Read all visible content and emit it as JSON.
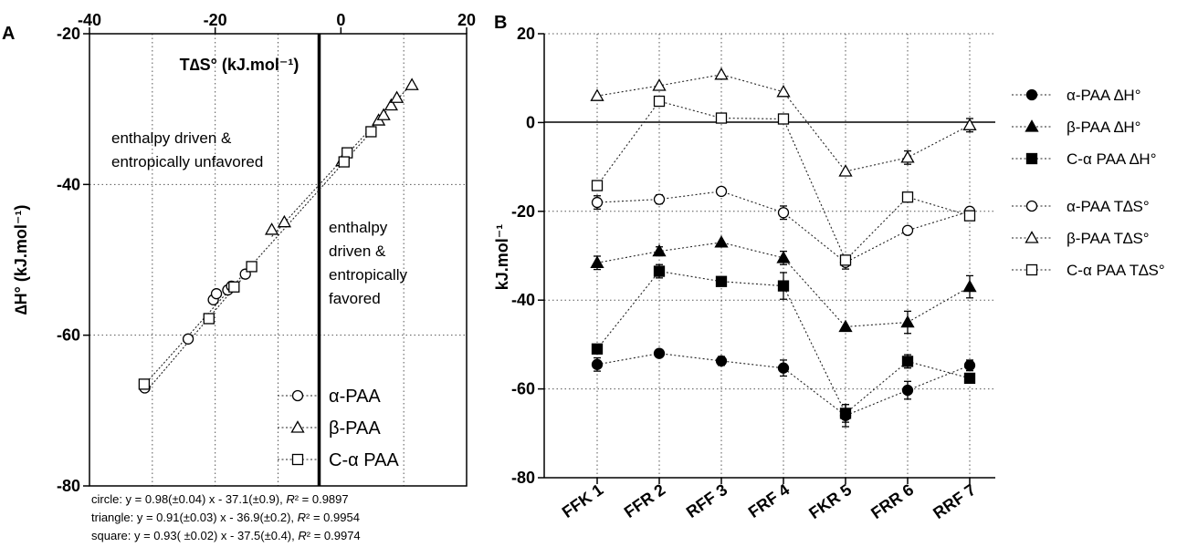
{
  "panels": {
    "a": {
      "letter": "A",
      "title_top": "T∆S° (kJ.mol⁻¹)",
      "ylabel": "∆H° (kJ.mol⁻¹)",
      "region_upper_line1": "enthalpy driven &",
      "region_upper_line2": "entropically unfavored",
      "region_lower_line1": "enthalpy",
      "region_lower_line2": "driven &",
      "region_lower_line3": "entropically",
      "region_lower_line4": "favored",
      "legend": [
        "α-PAA",
        "β-PAA",
        "C-α PAA"
      ],
      "equations": [
        {
          "lead": "circle: y = 0.98(±0.04) x - 37.1(±0.9), ",
          "r": "R",
          "tail": "² = 0.9897"
        },
        {
          "lead": "triangle: y = 0.91(±0.03) x - 36.9(±0.2), ",
          "r": "R",
          "tail": "² = 0.9954"
        },
        {
          "lead": "square: y = 0.93( ±0.02) x - 37.5(±0.4), ",
          "r": "R",
          "tail": "² = 0.9974"
        }
      ]
    },
    "b": {
      "letter": "B",
      "ylabel": "kJ.mol⁻¹",
      "legend": [
        "α-PAA ∆H°",
        "β-PAA ∆H°",
        "C-α PAA ∆H°",
        "α-PAA T∆S°",
        "β-PAA T∆S°",
        "C-α PAA T∆S°"
      ]
    }
  },
  "chart_data": [
    {
      "type": "scatter",
      "panel": "A",
      "xlabel": "T∆S° (kJ.mol⁻¹)",
      "ylabel": "∆H° (kJ.mol⁻¹)",
      "xlim": [
        -40,
        20
      ],
      "ylim": [
        -80,
        -20
      ],
      "xticks": [
        "-40",
        "-20",
        "0",
        "20"
      ],
      "yticks": [
        "-20",
        "-40",
        "-60",
        "-80"
      ],
      "grid": true,
      "legend_position": "bottom-right",
      "series": [
        {
          "name": "α-PAA",
          "marker": "circle",
          "x": [
            -31.2,
            -24.3,
            -20.3,
            -19.8,
            -18.0,
            -17.4,
            -15.2
          ],
          "y": [
            -67.0,
            -60.5,
            -55.3,
            -54.5,
            -54.0,
            -53.5,
            -51.9
          ],
          "fit": {
            "slope": 0.98,
            "intercept": -37.1
          }
        },
        {
          "name": "β-PAA",
          "marker": "triangle",
          "x": [
            -11.0,
            -9.0,
            0.2,
            6.0,
            6.8,
            8.0,
            8.9,
            11.3
          ],
          "y": [
            -46.0,
            -45.0,
            -36.9,
            -31.5,
            -30.8,
            -29.5,
            -28.5,
            -26.8
          ],
          "fit": {
            "slope": 0.91,
            "intercept": -36.9
          }
        },
        {
          "name": "C-α PAA",
          "marker": "square",
          "x": [
            -31.3,
            -21.0,
            -17.0,
            -14.2,
            1.0,
            0.5,
            4.8
          ],
          "y": [
            -66.5,
            -57.8,
            -53.6,
            -50.9,
            -35.8,
            -37.0,
            -33.0
          ],
          "fit": {
            "slope": 0.93,
            "intercept": -37.5
          }
        }
      ]
    },
    {
      "type": "line",
      "panel": "B",
      "ylabel": "kJ.mol⁻¹",
      "categories": [
        "FFK 1",
        "FFR 2",
        "RFF 3",
        "FRF 4",
        "FKR 5",
        "FRR 6",
        "RRF 7"
      ],
      "ylim": [
        -80,
        20
      ],
      "yticks": [
        "20",
        "0",
        "-20",
        "-40",
        "-60",
        "-80"
      ],
      "grid": true,
      "legend_position": "right",
      "series": [
        {
          "name": "α-PAA ∆H°",
          "marker": "circle",
          "filled": true,
          "values": [
            -54.5,
            -52.0,
            -53.7,
            -55.3,
            -66.0,
            -60.3,
            -54.7
          ],
          "error": [
            1.5,
            0.8,
            1.0,
            1.8,
            2.5,
            2.0,
            1.2
          ]
        },
        {
          "name": "β-PAA ∆H°",
          "marker": "triangle",
          "filled": true,
          "values": [
            -31.6,
            -29.0,
            -27.0,
            -30.5,
            -46.0,
            -45.0,
            -37.0
          ],
          "error": [
            1.5,
            1.0,
            0.5,
            1.5,
            0.5,
            2.5,
            2.5
          ]
        },
        {
          "name": "C-α PAA ∆H°",
          "marker": "square",
          "filled": true,
          "values": [
            -51.0,
            -33.5,
            -35.8,
            -36.8,
            -65.5,
            -53.8,
            -57.6
          ],
          "error": [
            1.0,
            1.5,
            1.0,
            3.0,
            2.0,
            1.5,
            1.0
          ]
        },
        {
          "name": "α-PAA T∆S°",
          "marker": "circle",
          "filled": false,
          "values": [
            -18.0,
            -17.3,
            -15.5,
            -20.3,
            -31.5,
            -24.3,
            -20.0
          ],
          "error": [
            1.5,
            1.0,
            0.5,
            1.5,
            1.5,
            0.5,
            0.5
          ]
        },
        {
          "name": "β-PAA T∆S°",
          "marker": "triangle",
          "filled": false,
          "values": [
            6.0,
            8.3,
            10.8,
            6.9,
            -11.0,
            -7.9,
            -0.6
          ],
          "error": [
            0.5,
            0.5,
            0.5,
            0.5,
            0.5,
            1.5,
            1.5
          ]
        },
        {
          "name": "C-α PAA T∆S°",
          "marker": "square",
          "filled": false,
          "values": [
            -14.2,
            4.8,
            1.0,
            0.8,
            -31.0,
            -16.8,
            -21.0
          ],
          "error": [
            0.5,
            0.5,
            0.5,
            0.5,
            1.0,
            0.5,
            0.5
          ]
        }
      ]
    }
  ]
}
